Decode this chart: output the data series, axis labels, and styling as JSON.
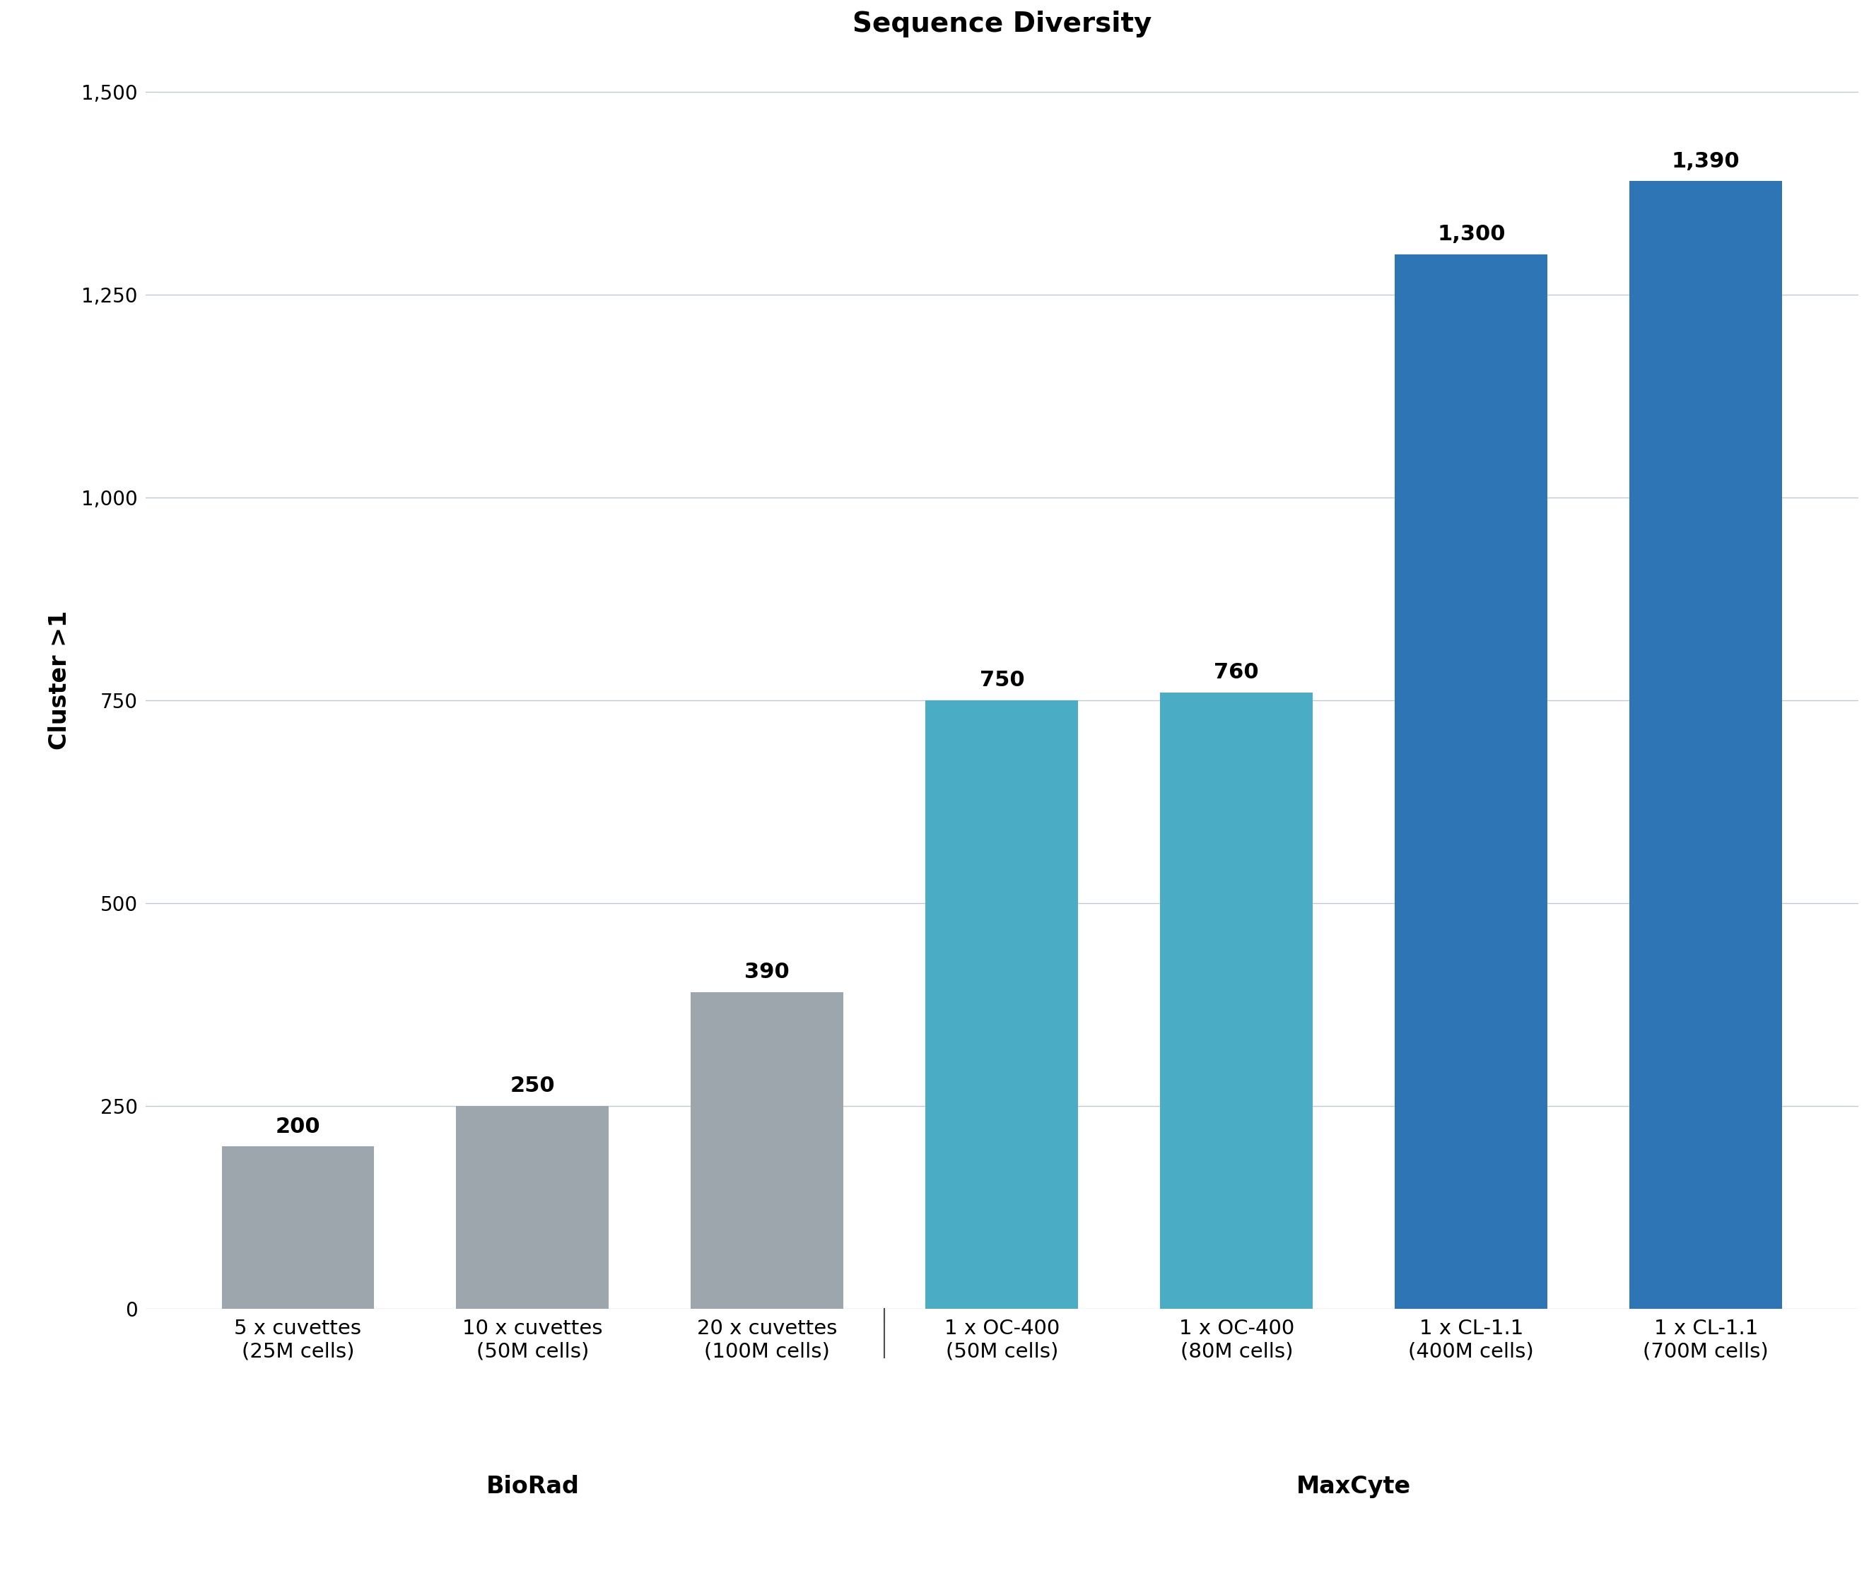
{
  "title": "Sequence Diversity",
  "ylabel": "Cluster >1",
  "categories": [
    "5 x cuvettes\n(25M cells)",
    "10 x cuvettes\n(50M cells)",
    "20 x cuvettes\n(100M cells)",
    "1 x OC-400\n(50M cells)",
    "1 x OC-400\n(80M cells)",
    "1 x CL-1.1\n(400M cells)",
    "1 x CL-1.1\n(700M cells)"
  ],
  "values": [
    200,
    250,
    390,
    750,
    760,
    1300,
    1390
  ],
  "bar_colors": [
    "#9EA6AD",
    "#9EA6AD",
    "#9EA6AD",
    "#4BACC6",
    "#4BACC6",
    "#2E75B6",
    "#2E75B6"
  ],
  "biorad_label": "BioRad",
  "maxcyte_label": "MaxCyte",
  "biorad_count": 3,
  "maxcyte_count": 4,
  "ylim": [
    0,
    1550
  ],
  "yticks": [
    0,
    250,
    500,
    750,
    1000,
    1250,
    1500
  ],
  "ytick_labels": [
    "0",
    "250",
    "500",
    "750",
    "1,000",
    "1,250",
    "1,500"
  ],
  "title_fontsize": 28,
  "label_fontsize": 22,
  "tick_fontsize": 20,
  "bar_label_fontsize": 22,
  "group_label_fontsize": 24,
  "background_color": "#FFFFFF",
  "grid_color": "#C0C8D0",
  "separator_color": "#4F4F4F"
}
